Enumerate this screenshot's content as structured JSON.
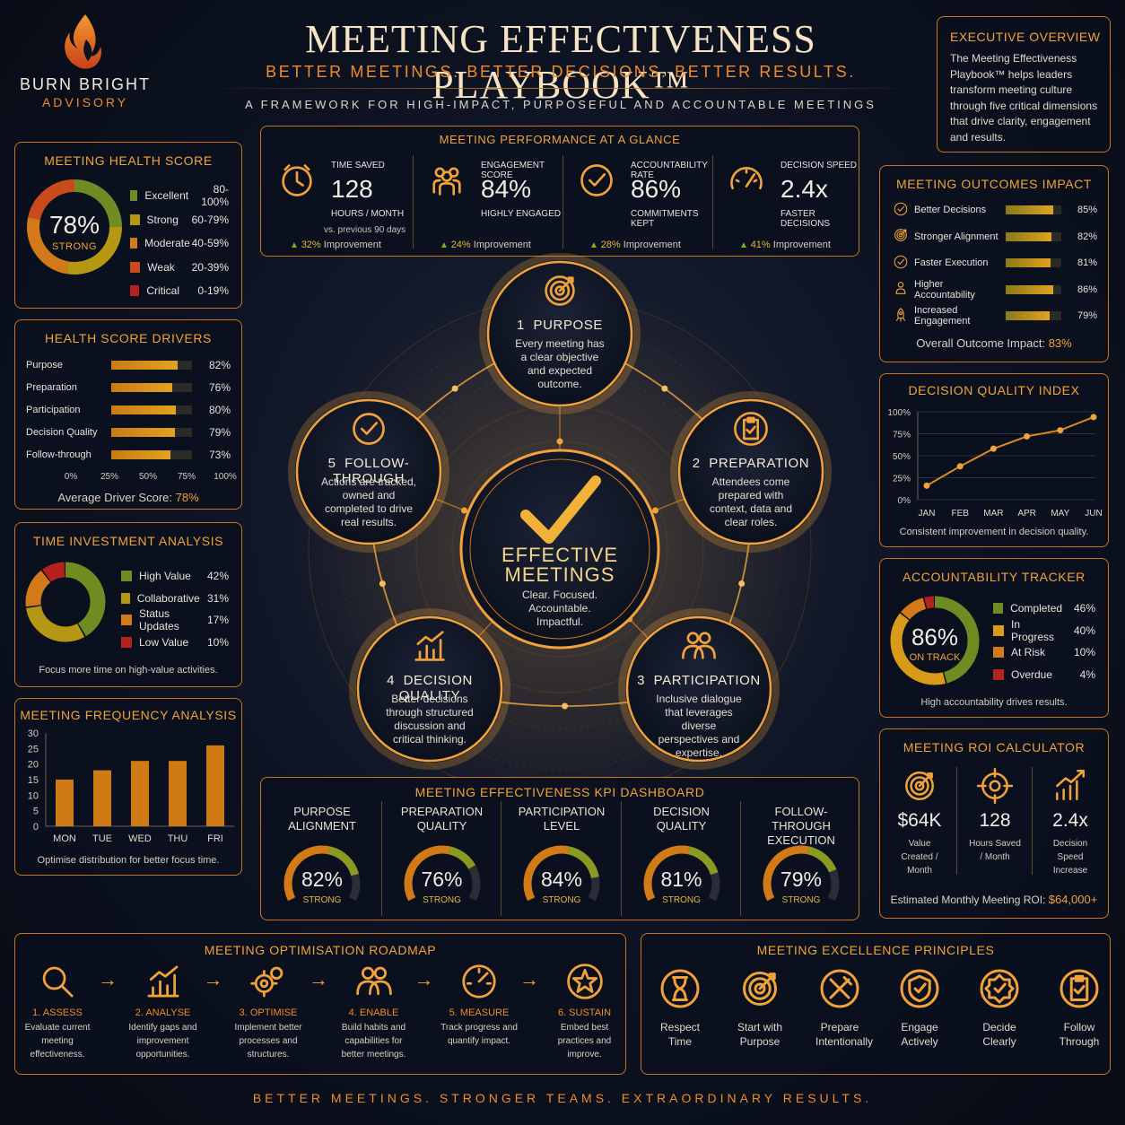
{
  "brand": {
    "name": "BURN BRIGHT",
    "sub": "ADVISORY"
  },
  "header": {
    "title": "MEETING EFFECTIVENESS PLAYBOOK™",
    "subtitle": "BETTER MEETINGS. BETTER DECISIONS. BETTER RESULTS.",
    "tagline": "A FRAMEWORK FOR HIGH-IMPACT, PURPOSEFUL AND ACCOUNTABLE MEETINGS"
  },
  "exec_overview": {
    "title": "EXECUTIVE OVERVIEW",
    "text": "The Meeting Effectiveness Playbook™ helps leaders transform meeting culture through five critical dimensions that drive clarity, engagement and results."
  },
  "health": {
    "title": "MEETING HEALTH SCORE",
    "value": "78%",
    "label": "STRONG",
    "percent": 78,
    "legend": [
      {
        "label": "Excellent",
        "range": "80-100%",
        "color": "#6f8c22"
      },
      {
        "label": "Strong",
        "range": "60-79%",
        "color": "#b59714"
      },
      {
        "label": "Moderate",
        "range": "40-59%",
        "color": "#d4791a"
      },
      {
        "label": "Weak",
        "range": "20-39%",
        "color": "#c94a1a"
      },
      {
        "label": "Critical",
        "range": "0-19%",
        "color": "#b5211c"
      }
    ]
  },
  "drivers": {
    "title": "HEALTH SCORE DRIVERS",
    "rows": [
      {
        "label": "Purpose",
        "value": "82%",
        "pct": 82
      },
      {
        "label": "Preparation",
        "value": "76%",
        "pct": 76
      },
      {
        "label": "Participation",
        "value": "80%",
        "pct": 80
      },
      {
        "label": "Decision Quality",
        "value": "79%",
        "pct": 79
      },
      {
        "label": "Follow-through",
        "value": "73%",
        "pct": 73
      }
    ],
    "axis": [
      "0%",
      "25%",
      "50%",
      "75%",
      "100%"
    ],
    "avg_label": "Average Driver Score:",
    "avg_value": "78%"
  },
  "time_investment": {
    "title": "TIME INVESTMENT ANALYSIS",
    "legend": [
      {
        "label": "High Value",
        "value": "42%",
        "pct": 42,
        "color": "#6f8c22"
      },
      {
        "label": "Collaborative",
        "value": "31%",
        "pct": 31,
        "color": "#b59714"
      },
      {
        "label": "Status Updates",
        "value": "17%",
        "pct": 17,
        "color": "#d4791a"
      },
      {
        "label": "Low Value",
        "value": "10%",
        "pct": 10,
        "color": "#b5211c"
      }
    ],
    "note": "Focus more time on high-value activities."
  },
  "frequency": {
    "title": "MEETING FREQUENCY ANALYSIS",
    "note": "Optimise distribution for better focus time."
  },
  "chart_data": [
    {
      "type": "bar",
      "title": "MEETING FREQUENCY ANALYSIS",
      "categories": [
        "MON",
        "TUE",
        "WED",
        "THU",
        "FRI"
      ],
      "values": [
        15,
        18,
        21,
        21,
        26
      ],
      "ylim": [
        0,
        30
      ],
      "yticks": [
        "0",
        "5",
        "10",
        "15",
        "20",
        "25",
        "30"
      ]
    },
    {
      "type": "line",
      "title": "DECISION QUALITY INDEX",
      "categories": [
        "JAN",
        "FEB",
        "MAR",
        "APR",
        "MAY",
        "JUN"
      ],
      "values": [
        16,
        38,
        58,
        72,
        79,
        94
      ],
      "ylim": [
        0,
        100
      ],
      "yticks": [
        "0%",
        "25%",
        "50%",
        "75%",
        "100%"
      ]
    }
  ],
  "glance": {
    "title": "MEETING PERFORMANCE AT A GLANCE",
    "items": [
      {
        "label": "TIME SAVED",
        "value": "128",
        "sub": "HOURS / MONTH",
        "extra": "vs. previous 90 days",
        "imp_value": "32%",
        "imp_label": "Improvement",
        "icon": "clock-icon"
      },
      {
        "label": "ENGAGEMENT SCORE",
        "value": "84%",
        "sub": "HIGHLY ENGAGED",
        "extra": "",
        "imp_value": "24%",
        "imp_label": "Improvement",
        "icon": "people-icon"
      },
      {
        "label": "ACCOUNTABILITY RATE",
        "value": "86%",
        "sub": "COMMITMENTS KEPT",
        "extra": "",
        "imp_value": "28%",
        "imp_label": "Improvement",
        "icon": "check-circle-icon"
      },
      {
        "label": "DECISION SPEED",
        "value": "2.4x",
        "sub": "FASTER DECISIONS",
        "extra": "",
        "imp_value": "41%",
        "imp_label": "Improvement",
        "icon": "speedometer-icon"
      }
    ]
  },
  "framework": {
    "center_title_1": "EFFECTIVE",
    "center_title_2": "MEETINGS",
    "center_desc": "Clear. Focused. Accountable. Impactful.",
    "nodes": [
      {
        "num": "1",
        "title": "PURPOSE",
        "desc": "Every meeting has a clear objective and expected outcome."
      },
      {
        "num": "2",
        "title": "PREPARATION",
        "desc": "Attendees come prepared with context, data and clear roles."
      },
      {
        "num": "3",
        "title": "PARTICIPATION",
        "desc": "Inclusive dialogue that leverages diverse perspectives and expertise."
      },
      {
        "num": "4",
        "title": "DECISION QUALITY",
        "desc": "Better decisions through structured discussion and critical thinking."
      },
      {
        "num": "5",
        "title": "FOLLOW-THROUGH",
        "desc": "Actions are tracked, owned and completed to drive real results."
      }
    ]
  },
  "kpi": {
    "title": "MEETING EFFECTIVENESS KPI DASHBOARD",
    "items": [
      {
        "title": "PURPOSE ALIGNMENT",
        "value": "82%",
        "pct": 82,
        "label": "STRONG"
      },
      {
        "title": "PREPARATION QUALITY",
        "value": "76%",
        "pct": 76,
        "label": "STRONG"
      },
      {
        "title": "PARTICIPATION LEVEL",
        "value": "84%",
        "pct": 84,
        "label": "STRONG"
      },
      {
        "title": "DECISION QUALITY",
        "value": "81%",
        "pct": 81,
        "label": "STRONG"
      },
      {
        "title": "FOLLOW-THROUGH EXECUTION",
        "value": "79%",
        "pct": 79,
        "label": "STRONG"
      }
    ]
  },
  "outcomes": {
    "title": "MEETING OUTCOMES IMPACT",
    "rows": [
      {
        "label": "Better Decisions",
        "value": "85%",
        "pct": 85,
        "icon": "check-circle-icon"
      },
      {
        "label": "Stronger Alignment",
        "value": "82%",
        "pct": 82,
        "icon": "target-icon"
      },
      {
        "label": "Faster Execution",
        "value": "81%",
        "pct": 81,
        "icon": "check-circle-icon"
      },
      {
        "label": "Higher Accountability",
        "value": "86%",
        "pct": 86,
        "icon": "person-icon"
      },
      {
        "label": "Increased Engagement",
        "value": "79%",
        "pct": 79,
        "icon": "rocket-icon"
      }
    ],
    "overall_label": "Overall Outcome Impact:",
    "overall_value": "83%"
  },
  "decision_index": {
    "title": "DECISION QUALITY INDEX",
    "note": "Consistent improvement in decision quality."
  },
  "accountability": {
    "title": "ACCOUNTABILITY TRACKER",
    "value": "86%",
    "label": "ON TRACK",
    "legend": [
      {
        "label": "Completed",
        "value": "46%",
        "pct": 46,
        "color": "#6f8c22"
      },
      {
        "label": "In Progress",
        "value": "40%",
        "pct": 40,
        "color": "#d99a18"
      },
      {
        "label": "At Risk",
        "value": "10%",
        "pct": 10,
        "color": "#d4791a"
      },
      {
        "label": "Overdue",
        "value": "4%",
        "pct": 4,
        "color": "#b5211c"
      }
    ],
    "note": "High accountability drives results."
  },
  "roi": {
    "title": "MEETING ROI CALCULATOR",
    "cols": [
      {
        "value": "$64K",
        "label": "Value Created / Month",
        "icon": "target-icon"
      },
      {
        "value": "128",
        "label": "Hours Saved / Month",
        "icon": "crosshair-icon"
      },
      {
        "value": "2.4x",
        "label": "Decision Speed Increase",
        "icon": "growth-chart-icon"
      }
    ],
    "est_label": "Estimated Monthly Meeting ROI:",
    "est_value": "$64,000+"
  },
  "roadmap": {
    "title": "MEETING OPTIMISATION ROADMAP",
    "steps": [
      {
        "title": "1. ASSESS",
        "desc": "Evaluate current meeting effectiveness.",
        "icon": "magnifier-icon"
      },
      {
        "title": "2. ANALYSE",
        "desc": "Identify gaps and improvement opportunities.",
        "icon": "chart-icon"
      },
      {
        "title": "3. OPTIMISE",
        "desc": "Implement better processes and structures.",
        "icon": "gears-icon"
      },
      {
        "title": "4. ENABLE",
        "desc": "Build habits and capabilities for better meetings.",
        "icon": "team-icon"
      },
      {
        "title": "5. MEASURE",
        "desc": "Track progress and quantify impact.",
        "icon": "gauge-icon"
      },
      {
        "title": "6. SUSTAIN",
        "desc": "Embed best practices and improve.",
        "icon": "star-icon"
      }
    ]
  },
  "principles": {
    "title": "MEETING EXCELLENCE PRINCIPLES",
    "items": [
      {
        "label": "Respect Time",
        "icon": "hourglass-icon"
      },
      {
        "label": "Start with Purpose",
        "icon": "target-icon"
      },
      {
        "label": "Prepare Intentionally",
        "icon": "tools-icon"
      },
      {
        "label": "Engage Actively",
        "icon": "shield-icon"
      },
      {
        "label": "Decide Clearly",
        "icon": "badge-icon"
      },
      {
        "label": "Follow Through",
        "icon": "clipboard-icon"
      }
    ]
  },
  "footer": "BETTER MEETINGS. STRONGER TEAMS. EXTRAORDINARY RESULTS."
}
